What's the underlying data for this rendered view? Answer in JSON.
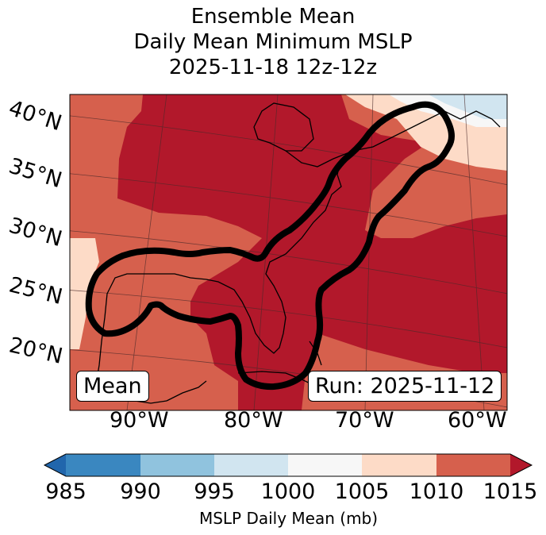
{
  "title": {
    "line1": "Ensemble Mean",
    "line2": "Daily Mean Minimum MSLP",
    "line3": "2025-11-18 12z-12z"
  },
  "map": {
    "lat_labels": [
      "40°N",
      "35°N",
      "30°N",
      "25°N",
      "20°N"
    ],
    "lon_labels": [
      "90°W",
      "80°W",
      "70°W",
      "60°W"
    ],
    "mean_label": "Mean",
    "run_label": "Run: 2025-11-12"
  },
  "colorbar": {
    "title": "MSLP Daily Mean (mb)",
    "ticks": [
      "985",
      "990",
      "995",
      "1000",
      "1005",
      "1010",
      "1015"
    ],
    "colors": [
      "#3a87c0",
      "#90c3de",
      "#d1e5f0",
      "#f7f7f7",
      "#fddbc7",
      "#d6604d",
      "#b2182b"
    ]
  }
}
